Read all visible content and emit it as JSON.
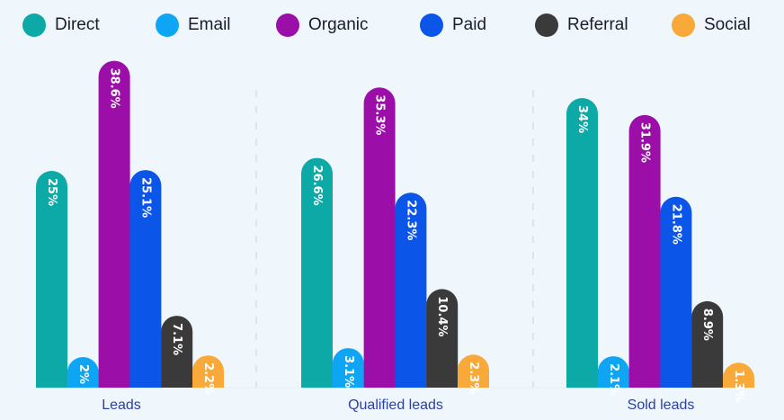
{
  "chart_data": {
    "type": "bar",
    "categories": [
      "Leads",
      "Qualified leads",
      "Sold leads"
    ],
    "series": [
      {
        "name": "Direct",
        "color": "#0da9a6",
        "values": [
          25,
          26.6,
          34
        ],
        "labels": [
          "25%",
          "26.6%",
          "34%"
        ]
      },
      {
        "name": "Email",
        "color": "#0ea5f5",
        "values": [
          2,
          3.1,
          2.1
        ],
        "labels": [
          "2%",
          "3.1%",
          "2.1%"
        ]
      },
      {
        "name": "Organic",
        "color": "#9b0ea8",
        "values": [
          38.6,
          35.3,
          31.9
        ],
        "labels": [
          "38.6%",
          "35.3%",
          "31.9%"
        ]
      },
      {
        "name": "Paid",
        "color": "#0b55e8",
        "values": [
          25.1,
          22.3,
          21.8
        ],
        "labels": [
          "25.1%",
          "22.3%",
          "21.8%"
        ]
      },
      {
        "name": "Referral",
        "color": "#3a3a3a",
        "values": [
          7.1,
          10.4,
          8.9
        ],
        "labels": [
          "7.1%",
          "10.4%",
          "8.9%"
        ]
      },
      {
        "name": "Social",
        "color": "#f8a93a",
        "values": [
          2.2,
          2.3,
          1.3
        ],
        "labels": [
          "2.2%",
          "2.3%",
          "1.3%"
        ]
      }
    ],
    "ylim": [
      0,
      40
    ],
    "grid": false,
    "legend_position": "top"
  }
}
